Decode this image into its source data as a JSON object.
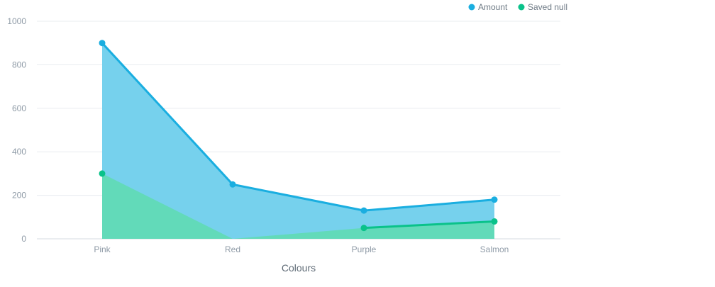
{
  "colors": {
    "amount": "#1aaee0",
    "amount_fill": "#73d0ed",
    "saved": "#0ac28a",
    "saved_fill": "#62dab8",
    "grid": "#e8ecef",
    "axis": "#d6dbe0"
  },
  "chart_data": {
    "type": "area",
    "categories": [
      "Pink",
      "Red",
      "Purple",
      "Salmon"
    ],
    "xlabel": "Colours",
    "ylabel": "",
    "ylim": [
      0,
      1000
    ],
    "yticks": [
      0,
      200,
      400,
      600,
      800,
      1000
    ],
    "grid": true,
    "legend_position": "top-right",
    "series": [
      {
        "name": "Amount",
        "values": [
          900,
          250,
          130,
          180
        ],
        "color_key": "amount"
      },
      {
        "name": "Saved null",
        "values": [
          300,
          null,
          50,
          80
        ],
        "color_key": "saved",
        "null_rendered_as_zero": true
      }
    ]
  }
}
